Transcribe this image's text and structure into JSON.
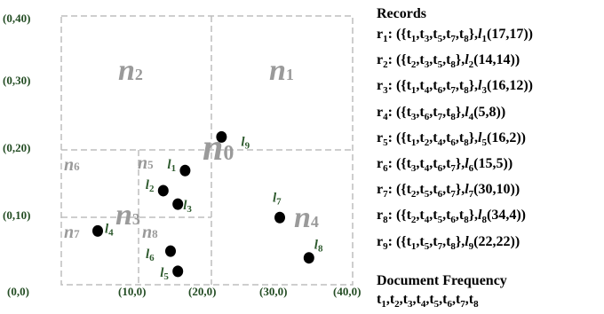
{
  "axis_labels": [
    {
      "text": "(0,40)"
    },
    {
      "text": "(0,30)"
    },
    {
      "text": "(0,20)"
    },
    {
      "text": "(0,10)"
    },
    {
      "text": "(0,0)"
    },
    {
      "text": "(10,0)"
    },
    {
      "text": "(20,0)"
    },
    {
      "text": "(30,0)"
    },
    {
      "text": "(40,0)"
    }
  ],
  "nodes": [
    {
      "name": "n",
      "sub": "1"
    },
    {
      "name": "n",
      "sub": "2"
    },
    {
      "name": "n",
      "sub": "0"
    },
    {
      "name": "n",
      "sub": "3"
    },
    {
      "name": "n",
      "sub": "4"
    },
    {
      "name": "n",
      "sub": "5"
    },
    {
      "name": "n",
      "sub": "6"
    },
    {
      "name": "n",
      "sub": "7"
    },
    {
      "name": "n",
      "sub": "8"
    }
  ],
  "points": [
    {
      "name": "l",
      "sub": "1",
      "x": 17,
      "y": 17
    },
    {
      "name": "l",
      "sub": "2",
      "x": 14,
      "y": 14
    },
    {
      "name": "l",
      "sub": "3",
      "x": 16,
      "y": 12
    },
    {
      "name": "l",
      "sub": "4",
      "x": 5,
      "y": 8
    },
    {
      "name": "l",
      "sub": "5",
      "x": 16,
      "y": 2
    },
    {
      "name": "l",
      "sub": "6",
      "x": 15,
      "y": 5
    },
    {
      "name": "l",
      "sub": "7",
      "x": 30,
      "y": 10
    },
    {
      "name": "l",
      "sub": "8",
      "x": 34,
      "y": 4
    },
    {
      "name": "l",
      "sub": "9",
      "x": 22,
      "y": 22
    }
  ],
  "records": {
    "title": "Records",
    "items": [
      {
        "id_main": "r",
        "id_sub": "1",
        "terms": [
          {
            "t": "t",
            "s": "1"
          },
          {
            "t": "t",
            "s": "3"
          },
          {
            "t": "t",
            "s": "5"
          },
          {
            "t": "t",
            "s": "7"
          },
          {
            "t": "t",
            "s": "8"
          }
        ],
        "loc": "l",
        "loc_sub": "1",
        "coords": "(17,17)"
      },
      {
        "id_main": "r",
        "id_sub": "2",
        "terms": [
          {
            "t": "t",
            "s": "2"
          },
          {
            "t": "t",
            "s": "3"
          },
          {
            "t": "t",
            "s": "5"
          },
          {
            "t": "t",
            "s": "8"
          }
        ],
        "loc": "l",
        "loc_sub": "2",
        "coords": "(14,14)"
      },
      {
        "id_main": "r",
        "id_sub": "3",
        "terms": [
          {
            "t": "t",
            "s": "1"
          },
          {
            "t": "t",
            "s": "4"
          },
          {
            "t": "t",
            "s": "6"
          },
          {
            "t": "t",
            "s": "7"
          },
          {
            "t": "t",
            "s": "8"
          }
        ],
        "loc": "l",
        "loc_sub": "3",
        "coords": "(16,12)"
      },
      {
        "id_main": "r",
        "id_sub": "4",
        "terms": [
          {
            "t": "t",
            "s": "3"
          },
          {
            "t": "t",
            "s": "6"
          },
          {
            "t": "t",
            "s": "7"
          },
          {
            "t": "t",
            "s": "8"
          }
        ],
        "loc": "l",
        "loc_sub": "4",
        "coords": "(5,8)"
      },
      {
        "id_main": "r",
        "id_sub": "5",
        "terms": [
          {
            "t": "t",
            "s": "1"
          },
          {
            "t": "t",
            "s": "2"
          },
          {
            "t": "t",
            "s": "4"
          },
          {
            "t": "t",
            "s": "6"
          },
          {
            "t": "t",
            "s": "8"
          }
        ],
        "loc": "l",
        "loc_sub": "5",
        "coords": "(16,2)"
      },
      {
        "id_main": "r",
        "id_sub": "6",
        "terms": [
          {
            "t": "t",
            "s": "3"
          },
          {
            "t": "t",
            "s": "4"
          },
          {
            "t": "t",
            "s": "6"
          },
          {
            "t": "t",
            "s": "7"
          }
        ],
        "loc": "l",
        "loc_sub": "6",
        "coords": "(15,5)"
      },
      {
        "id_main": "r",
        "id_sub": "7",
        "terms": [
          {
            "t": "t",
            "s": "2"
          },
          {
            "t": "t",
            "s": "5"
          },
          {
            "t": "t",
            "s": "6"
          },
          {
            "t": "t",
            "s": "7"
          }
        ],
        "loc": "l",
        "loc_sub": "7",
        "coords": "(30,10)"
      },
      {
        "id_main": "r",
        "id_sub": "8",
        "terms": [
          {
            "t": "t",
            "s": "2"
          },
          {
            "t": "t",
            "s": "4"
          },
          {
            "t": "t",
            "s": "5"
          },
          {
            "t": "t",
            "s": "6"
          },
          {
            "t": "t",
            "s": "8"
          }
        ],
        "loc": "l",
        "loc_sub": "8",
        "coords": "(34,4)"
      },
      {
        "id_main": "r",
        "id_sub": "9",
        "terms": [
          {
            "t": "t",
            "s": "1"
          },
          {
            "t": "t",
            "s": "5"
          },
          {
            "t": "t",
            "s": "7"
          },
          {
            "t": "t",
            "s": "8"
          }
        ],
        "loc": "l",
        "loc_sub": "9",
        "coords": "(22,22)"
      }
    ]
  },
  "document_frequency": {
    "title": "Document Frequency",
    "terms": [
      {
        "t": "t",
        "s": "1"
      },
      {
        "t": "t",
        "s": "2"
      },
      {
        "t": "t",
        "s": "3"
      },
      {
        "t": "t",
        "s": "4"
      },
      {
        "t": "t",
        "s": "5"
      },
      {
        "t": "t",
        "s": "6"
      },
      {
        "t": "t",
        "s": "7"
      },
      {
        "t": "t",
        "s": "8"
      }
    ]
  },
  "colors": {
    "axis_label": "#244d24",
    "node_label": "#9a9a9a",
    "point_label": "#2e5a2e",
    "point_fill": "#000000",
    "grid_line": "#bdbdbd"
  }
}
